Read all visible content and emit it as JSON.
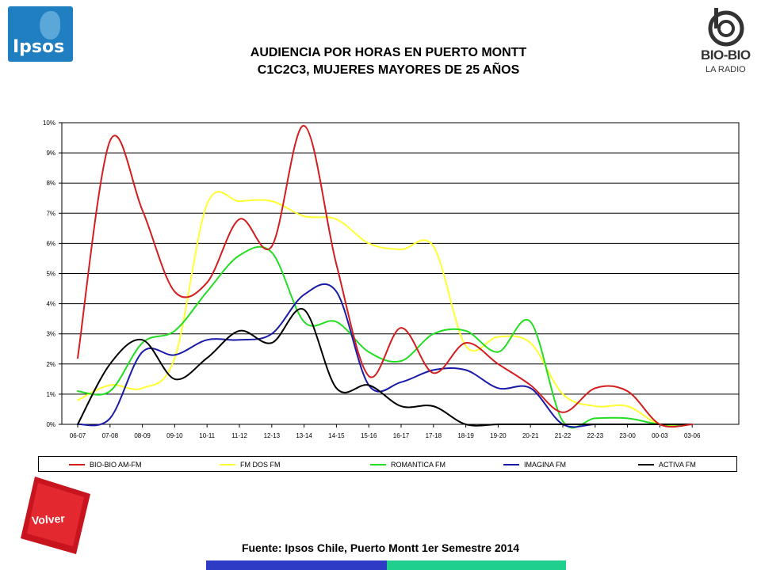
{
  "header": {
    "title_line1": "AUDIENCIA POR HORAS EN PUERTO MONTT",
    "title_line2": "C1C2C3, MUJERES MAYORES DE 25 AÑOS"
  },
  "logos": {
    "ipsos_text": "Ipsos",
    "biobio_name": "BIO-BIO",
    "biobio_sub": "LA RADIO"
  },
  "navigation": {
    "volver_label": "Volver"
  },
  "footer": {
    "source": "Fuente: Ipsos Chile, Puerto Montt 1er Semestre 2014"
  },
  "colors": {
    "bio_bio": "#d21e1e",
    "fm_dos": "#ffff33",
    "romantica": "#22dd22",
    "imagina": "#1a1aa8",
    "activa": "#000000",
    "ipsos_blue": "#1f7fc0"
  },
  "chart_data": {
    "type": "line",
    "categories": [
      "06-07",
      "07-08",
      "08-09",
      "09-10",
      "10-11",
      "11-12",
      "12-13",
      "13-14",
      "14-15",
      "15-16",
      "16-17",
      "17-18",
      "18-19",
      "19-20",
      "20-21",
      "21-22",
      "22-23",
      "23-00",
      "00-03",
      "03-06"
    ],
    "yticks": [
      "0%",
      "1%",
      "2%",
      "3%",
      "4%",
      "5%",
      "6%",
      "7%",
      "8%",
      "9%",
      "10%"
    ],
    "ylim": [
      0,
      10
    ],
    "grid": true,
    "legend_position": "bottom",
    "series": [
      {
        "name": "BIO-BIO AM-FM",
        "color": "#d21e1e",
        "values": [
          2.2,
          9.4,
          7.1,
          4.4,
          4.7,
          6.8,
          5.9,
          9.9,
          5.3,
          1.6,
          3.2,
          1.7,
          2.7,
          2.0,
          1.3,
          0.4,
          1.2,
          1.1,
          0.0,
          0.0
        ]
      },
      {
        "name": "FM DOS FM",
        "color": "#ffff33",
        "values": [
          0.8,
          1.3,
          1.2,
          2.2,
          7.3,
          7.4,
          7.4,
          6.9,
          6.8,
          6.0,
          5.8,
          5.9,
          2.6,
          2.9,
          2.7,
          1.0,
          0.6,
          0.6,
          0.0,
          0.0
        ]
      },
      {
        "name": "ROMANTICA FM",
        "color": "#22dd22",
        "values": [
          1.1,
          1.1,
          2.7,
          3.1,
          4.4,
          5.6,
          5.7,
          3.4,
          3.4,
          2.4,
          2.1,
          3.0,
          3.1,
          2.4,
          3.4,
          0.1,
          0.2,
          0.2,
          0.0,
          0.0
        ]
      },
      {
        "name": "IMAGINA FM",
        "color": "#1a1aa8",
        "values": [
          0.0,
          0.2,
          2.4,
          2.3,
          2.8,
          2.8,
          3.0,
          4.3,
          4.4,
          1.3,
          1.4,
          1.8,
          1.8,
          1.2,
          1.2,
          0.0,
          0.0,
          0.0,
          0.0,
          0.0
        ]
      },
      {
        "name": "ACTIVA FM",
        "color": "#000000",
        "values": [
          0.0,
          2.0,
          2.8,
          1.5,
          2.2,
          3.1,
          2.7,
          3.8,
          1.2,
          1.3,
          0.6,
          0.6,
          0.0,
          0.0,
          0.0,
          0.0,
          0.0,
          0.0,
          0.0,
          0.0
        ]
      }
    ]
  }
}
